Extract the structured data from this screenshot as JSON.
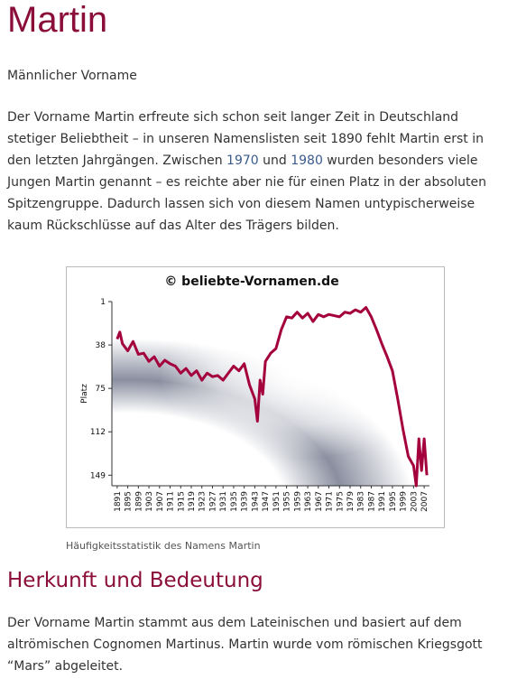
{
  "header": {
    "title": "Martin",
    "subtitle": "Männlicher Vorname"
  },
  "intro": [
    "Der Vorname Martin erfreute sich schon seit langer Zeit in Deutschland stetiger Beliebtheit – in unseren Namenslisten seit 1890 fehlt Martin erst in den letzten Jahrgängen. Zwischen ",
    "1970",
    " und ",
    "1980",
    " wurden besonders viele Jungen Martin genannt – es reichte aber nie für einen Platz in der absoluten Spitzengruppe. Dadurch lassen sich von diesem Namen untypischerweise kaum Rückschlüsse auf das Alter des Trägers bilden."
  ],
  "chart_data": {
    "type": "line",
    "title": "© beliebte-Vornamen.de",
    "y_label": "Platz",
    "y_inverted": true,
    "x": [
      1891,
      1892,
      1893,
      1895,
      1897,
      1899,
      1901,
      1903,
      1905,
      1907,
      1909,
      1911,
      1913,
      1915,
      1917,
      1919,
      1921,
      1923,
      1925,
      1927,
      1929,
      1931,
      1933,
      1935,
      1937,
      1939,
      1941,
      1943,
      1944,
      1945,
      1946,
      1947,
      1949,
      1951,
      1953,
      1955,
      1957,
      1959,
      1961,
      1963,
      1965,
      1967,
      1969,
      1971,
      1973,
      1975,
      1977,
      1979,
      1981,
      1983,
      1985,
      1987,
      1989,
      1991,
      1993,
      1995,
      1997,
      1999,
      2001,
      2003,
      2004,
      2005,
      2006,
      2007,
      2008
    ],
    "series": [
      {
        "name": "Martin",
        "color": "#a3003c",
        "values": [
          33,
          27,
          37,
          43,
          35,
          46,
          45,
          52,
          48,
          56,
          51,
          54,
          56,
          62,
          58,
          64,
          60,
          68,
          62,
          65,
          64,
          68,
          62,
          56,
          60,
          54,
          72,
          84,
          103,
          68,
          80,
          52,
          45,
          41,
          25,
          14,
          15,
          10,
          15,
          11,
          18,
          12,
          14,
          12,
          13,
          14,
          10,
          11,
          8,
          10,
          6,
          14,
          25,
          37,
          48,
          60,
          84,
          110,
          133,
          141,
          158,
          118,
          145,
          118,
          149
        ]
      }
    ],
    "xlim": [
      1889,
      2009
    ],
    "ylim": [
      1,
      158
    ],
    "xticks": [
      1891,
      1895,
      1899,
      1903,
      1907,
      1911,
      1915,
      1919,
      1923,
      1927,
      1931,
      1935,
      1939,
      1943,
      1947,
      1951,
      1955,
      1959,
      1963,
      1967,
      1971,
      1975,
      1979,
      1983,
      1987,
      1991,
      1995,
      1999,
      2003,
      2007
    ],
    "yticks": [
      1,
      38,
      75,
      112,
      149
    ],
    "grid": false
  },
  "caption": "Häufigkeitsstatistik des Namens Martin",
  "section": {
    "title": "Herkunft und Bedeutung",
    "text": "Der Vorname Martin stammt aus dem Lateinischen und basiert auf dem altrömischen Cognomen Martinus. Martin wurde vom römischen Kriegsgott “Mars” abgeleitet."
  }
}
